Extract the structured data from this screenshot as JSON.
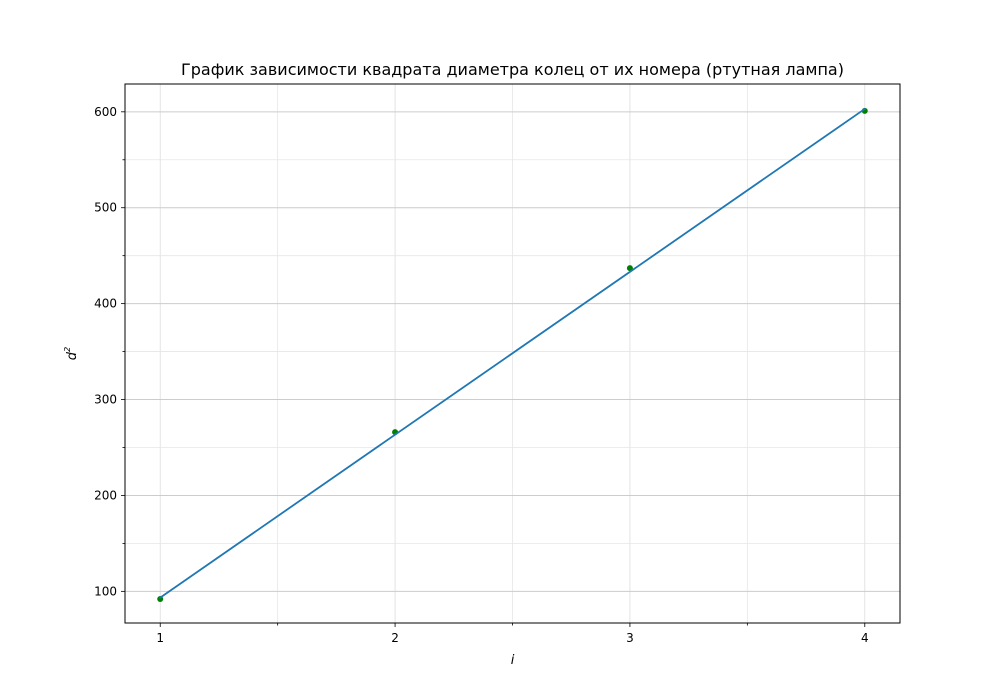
{
  "chart_data": {
    "type": "scatter",
    "title": "График зависимости квадрата диаметра колец от их номера (ртутная лампа)",
    "xlabel": "i",
    "ylabel": {
      "base": "d",
      "sup": "2"
    },
    "xlim": [
      0.85,
      4.15
    ],
    "ylim": [
      67,
      629
    ],
    "xticks": {
      "major": [
        1,
        2,
        3,
        4
      ],
      "minor": [
        1.5,
        2.5,
        3.5
      ],
      "labels": [
        "1",
        "2",
        "3",
        "4"
      ]
    },
    "yticks": {
      "major": [
        100,
        200,
        300,
        400,
        500,
        600
      ],
      "minor": [
        150,
        250,
        350,
        450,
        550
      ],
      "labels": [
        "100",
        "200",
        "300",
        "400",
        "500",
        "600"
      ]
    },
    "grid": true,
    "series": [
      {
        "kind": "points",
        "color": "#008000",
        "x": [
          1,
          2,
          3,
          4
        ],
        "y": [
          92,
          266,
          437,
          601
        ]
      },
      {
        "kind": "fit-line",
        "color": "#1f77b4",
        "x": [
          1,
          4
        ],
        "y": [
          93.5,
          603
        ]
      }
    ]
  }
}
